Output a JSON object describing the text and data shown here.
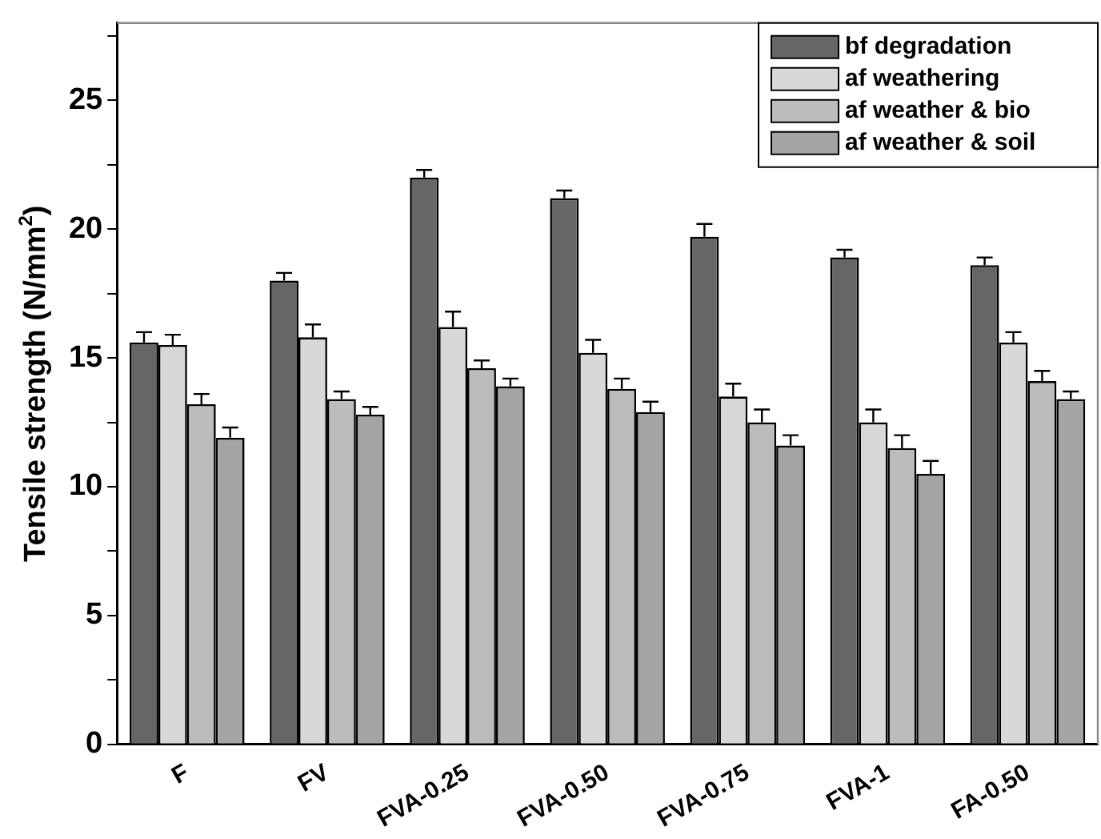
{
  "chart_data": {
    "type": "bar",
    "ylabel": "Tensile strength (N/mm$^{2}$)",
    "categories": [
      "F",
      "FV",
      "FVA-0.25",
      "FVA-0.50",
      "FVA-0.75",
      "FVA-1",
      "FA-0.50"
    ],
    "series": [
      {
        "name": "bf degradation",
        "color": "#666666",
        "values": [
          15.6,
          18.0,
          22.0,
          21.2,
          19.7,
          18.9,
          18.6
        ],
        "errors": [
          0.4,
          0.3,
          0.3,
          0.3,
          0.5,
          0.3,
          0.3
        ]
      },
      {
        "name": "af weathering",
        "color": "#d8d8d8",
        "values": [
          15.5,
          15.8,
          16.2,
          15.2,
          13.5,
          12.5,
          15.6
        ],
        "errors": [
          0.4,
          0.5,
          0.6,
          0.5,
          0.5,
          0.5,
          0.4
        ]
      },
      {
        "name": "af weather & bio",
        "color": "#bcbcbc",
        "values": [
          13.2,
          13.4,
          14.6,
          13.8,
          12.5,
          11.5,
          14.1
        ],
        "errors": [
          0.4,
          0.3,
          0.3,
          0.4,
          0.5,
          0.5,
          0.4
        ]
      },
      {
        "name": "af weather & soil",
        "color": "#a4a4a4",
        "values": [
          11.9,
          12.8,
          13.9,
          12.9,
          11.6,
          10.5,
          13.4
        ],
        "errors": [
          0.4,
          0.3,
          0.3,
          0.4,
          0.4,
          0.5,
          0.3
        ]
      }
    ],
    "ylim": [
      0,
      28
    ],
    "yticks": [
      0,
      {
        "value": 2.5,
        "label": null
      },
      5,
      {
        "value": 7.5,
        "label": null
      },
      10,
      {
        "value": 12.5,
        "label": null
      },
      15,
      {
        "value": 17.5,
        "label": null
      },
      20,
      {
        "value": 22.5,
        "label": null
      },
      25,
      {
        "value": 27.5,
        "label": null
      }
    ],
    "grid": false,
    "legend": "top right"
  }
}
